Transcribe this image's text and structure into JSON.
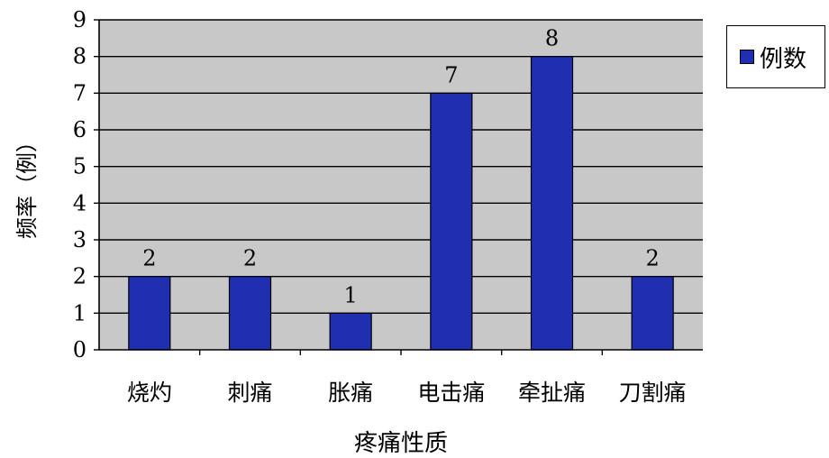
{
  "chart_data": {
    "type": "bar",
    "categories": [
      "烧灼",
      "刺痛",
      "胀痛",
      "电击痛",
      "牵扯痛",
      "刀割痛"
    ],
    "series": [
      {
        "name": "例数",
        "values": [
          2,
          2,
          1,
          7,
          8,
          2
        ]
      }
    ],
    "data_labels": [
      "2",
      "2",
      "1",
      "7",
      "8",
      "2"
    ],
    "xlabel": "疼痛性质",
    "ylabel": "频率（例）",
    "ylim": [
      0,
      9
    ],
    "yticks": [
      0,
      1,
      2,
      3,
      4,
      5,
      6,
      7,
      8,
      9
    ],
    "grid": true,
    "legend_position": "top-right",
    "colors": {
      "bar": "#1f2fb0",
      "bar_border": "#000000",
      "plot_background": "#c8c8c8",
      "grid": "#000000"
    }
  }
}
